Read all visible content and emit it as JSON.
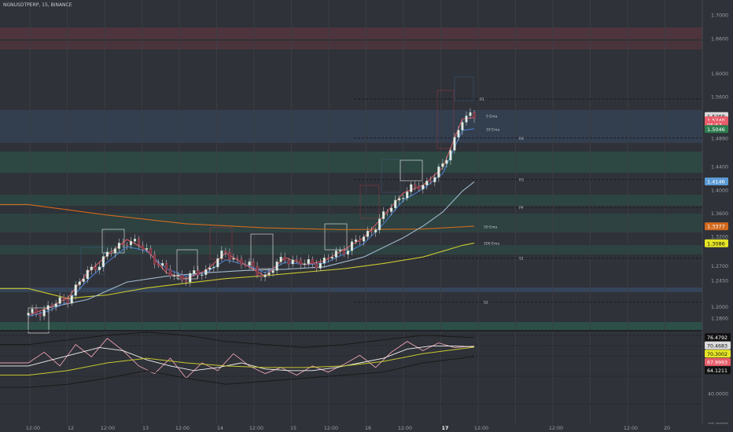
{
  "header": {
    "symbol_title": "NGNUSDTPERP, 15, BINANCE"
  },
  "colors": {
    "background": "#2f3238",
    "candle_up": "#e8e8e8",
    "candle_down": "#7b3a48",
    "ema5": "#e05a6a",
    "ema10": "#4a7fd4",
    "ema50": "#9fb8cc",
    "ema200": "#c8c830",
    "ema800": "#d2691e",
    "sr_resistance": "#8a3a45",
    "sr_support": "#2a6a55",
    "sr_blue": "#3b5577"
  },
  "chart_data": [
    {
      "type": "line",
      "panel": "price",
      "ylim": [
        1.16,
        1.715
      ],
      "y_ticks": [
        "1.7000",
        "1.6600",
        "1.6000",
        "1.5600",
        "1.4890",
        "1.4400",
        "1.4000",
        "1.3600",
        "1.3200",
        "1.2700",
        "1.2450",
        "1.2000",
        "1.1800"
      ],
      "x_ticks": [
        "12:00",
        "12",
        "12:00",
        "13",
        "12:00",
        "14",
        "12:00",
        "15",
        "12:00",
        "16",
        "12:00",
        "17",
        "12:00",
        "12:00",
        "12:00",
        "20"
      ],
      "price_tags": [
        {
          "value": "1.5268",
          "bg": "#d9d9d9",
          "fg": "#111111",
          "y": 1.5268
        },
        {
          "value": "1.5240",
          "bg": "#e85c6a",
          "fg": "#ffffff",
          "y": 1.5195
        },
        {
          "value": "05:57",
          "bg": "#e85c6a",
          "fg": "#ffffff",
          "y": 1.5115
        },
        {
          "value": "1.5046",
          "bg": "#2e7d4f",
          "fg": "#ffffff",
          "y": 1.5046
        },
        {
          "value": "1.4146",
          "bg": "#5b9bd5",
          "fg": "#ffffff",
          "y": 1.4146
        },
        {
          "value": "1.3377",
          "bg": "#d2691e",
          "fg": "#ffffff",
          "y": 1.3377
        },
        {
          "value": "1.3086",
          "bg": "#e5e526",
          "fg": "#111111",
          "y": 1.3086
        }
      ],
      "level_labels": [
        {
          "text": "R1",
          "y": 1.556
        },
        {
          "text": "5 Ema",
          "y": 1.527
        },
        {
          "text": "10 Ema",
          "y": 1.504
        },
        {
          "text": "R4",
          "y": 1.489
        },
        {
          "text": "R3",
          "y": 1.418
        },
        {
          "text": "PP",
          "y": 1.37
        },
        {
          "text": "50 Ema",
          "y": 1.337
        },
        {
          "text": "200 Ema",
          "y": 1.309
        },
        {
          "text": "S1",
          "y": 1.283
        },
        {
          "text": "S2",
          "y": 1.208
        }
      ],
      "series": [
        {
          "name": "5 Ema",
          "color": "#e05a6a",
          "x": [
            0,
            5,
            10,
            15,
            20,
            25,
            30,
            35,
            40,
            45,
            50,
            55,
            60,
            65,
            70,
            75,
            80,
            85,
            90,
            95,
            100,
            105,
            110,
            113
          ],
          "values": [
            1.185,
            1.198,
            1.215,
            1.258,
            1.288,
            1.315,
            1.297,
            1.258,
            1.248,
            1.262,
            1.292,
            1.272,
            1.252,
            1.284,
            1.272,
            1.278,
            1.298,
            1.318,
            1.355,
            1.395,
            1.408,
            1.438,
            1.522,
            1.524
          ]
        },
        {
          "name": "10 Ema",
          "color": "#4a7fd4",
          "x": [
            0,
            5,
            10,
            15,
            20,
            25,
            30,
            35,
            40,
            45,
            50,
            55,
            60,
            65,
            70,
            75,
            80,
            85,
            90,
            95,
            100,
            105,
            110,
            113
          ],
          "values": [
            1.183,
            1.192,
            1.208,
            1.245,
            1.276,
            1.303,
            1.295,
            1.265,
            1.252,
            1.258,
            1.28,
            1.272,
            1.258,
            1.276,
            1.272,
            1.274,
            1.29,
            1.308,
            1.342,
            1.382,
            1.402,
            1.428,
            1.502,
            1.505
          ]
        },
        {
          "name": "50 Ema",
          "color": "#9fb8cc",
          "x": [
            5,
            15,
            25,
            35,
            45,
            55,
            65,
            75,
            85,
            95,
            100,
            105,
            110,
            113
          ],
          "values": [
            1.198,
            1.212,
            1.242,
            1.252,
            1.258,
            1.262,
            1.264,
            1.268,
            1.285,
            1.318,
            1.338,
            1.362,
            1.398,
            1.414
          ]
        },
        {
          "name": "200 Ema",
          "color": "#c8c830",
          "x": [
            0,
            10,
            20,
            30,
            40,
            50,
            60,
            70,
            80,
            90,
            100,
            105,
            110,
            113
          ],
          "values": [
            1.231,
            1.214,
            1.22,
            1.232,
            1.24,
            1.248,
            1.253,
            1.259,
            1.265,
            1.274,
            1.285,
            1.295,
            1.305,
            1.309
          ]
        },
        {
          "name": "800 Ema",
          "color": "#d2691e",
          "x": [
            0,
            20,
            40,
            60,
            80,
            100,
            113
          ],
          "values": [
            1.375,
            1.357,
            1.342,
            1.335,
            1.332,
            1.333,
            1.338
          ]
        }
      ]
    },
    {
      "type": "line",
      "panel": "rsi",
      "ylim": [
        20,
        80
      ],
      "y_ticks": [
        "40.0000",
        "20.0000"
      ],
      "value_tags": [
        {
          "value": "76.4792",
          "bg": "#111111",
          "fg": "#ffffff",
          "y": 76.8
        },
        {
          "value": "70.4683",
          "bg": "#dcdcdc",
          "fg": "#111111",
          "y": 71.4
        },
        {
          "value": "70.3002",
          "bg": "#e5e526",
          "fg": "#111111",
          "y": 66.0
        },
        {
          "value": "67.9993",
          "bg": "#e85c6a",
          "fg": "#ffffff",
          "y": 60.6
        },
        {
          "value": "64.1211",
          "bg": "#111111",
          "fg": "#ffffff",
          "y": 55.2
        }
      ],
      "series": [
        {
          "name": "rsi",
          "color": "#e8a0b0",
          "x": [
            0,
            4,
            8,
            12,
            16,
            20,
            24,
            28,
            32,
            36,
            40,
            44,
            48,
            52,
            56,
            60,
            64,
            68,
            72,
            76,
            80,
            84,
            88,
            92,
            96,
            100,
            104,
            108,
            113
          ],
          "values": [
            60,
            67,
            58,
            72,
            64,
            76,
            68,
            58,
            53,
            63,
            50,
            60,
            55,
            66,
            58,
            53,
            57,
            52,
            58,
            54,
            59,
            65,
            57,
            67,
            74,
            68,
            73,
            70,
            71
          ]
        },
        {
          "name": "rsi_signal",
          "color": "#f2f2f2",
          "x": [
            0,
            6,
            12,
            18,
            24,
            30,
            36,
            42,
            48,
            54,
            60,
            66,
            72,
            78,
            84,
            90,
            96,
            102,
            108,
            113
          ],
          "values": [
            58,
            62,
            66,
            70,
            68,
            62,
            58,
            55,
            57,
            60,
            56,
            55,
            55,
            57,
            60,
            63,
            69,
            71,
            71,
            70.5
          ]
        },
        {
          "name": "rsi_ma",
          "color": "#c8c830",
          "x": [
            0,
            10,
            20,
            30,
            40,
            50,
            60,
            70,
            80,
            90,
            100,
            113
          ],
          "values": [
            52,
            55,
            60,
            63,
            60,
            58,
            57,
            57,
            58,
            61,
            66,
            70.3
          ]
        },
        {
          "name": "upper_band",
          "color": "#1a1a1a",
          "x": [
            0,
            10,
            20,
            30,
            40,
            50,
            60,
            70,
            80,
            90,
            100,
            113
          ],
          "values": [
            72,
            75,
            78,
            80,
            78,
            74,
            72,
            70,
            72,
            75,
            78,
            76.5
          ]
        },
        {
          "name": "lower_band",
          "color": "#1a1a1a",
          "x": [
            0,
            10,
            20,
            30,
            40,
            50,
            60,
            70,
            80,
            90,
            100,
            113
          ],
          "values": [
            44,
            46,
            50,
            55,
            50,
            46,
            48,
            50,
            52,
            54,
            60,
            64.1
          ]
        }
      ]
    }
  ]
}
